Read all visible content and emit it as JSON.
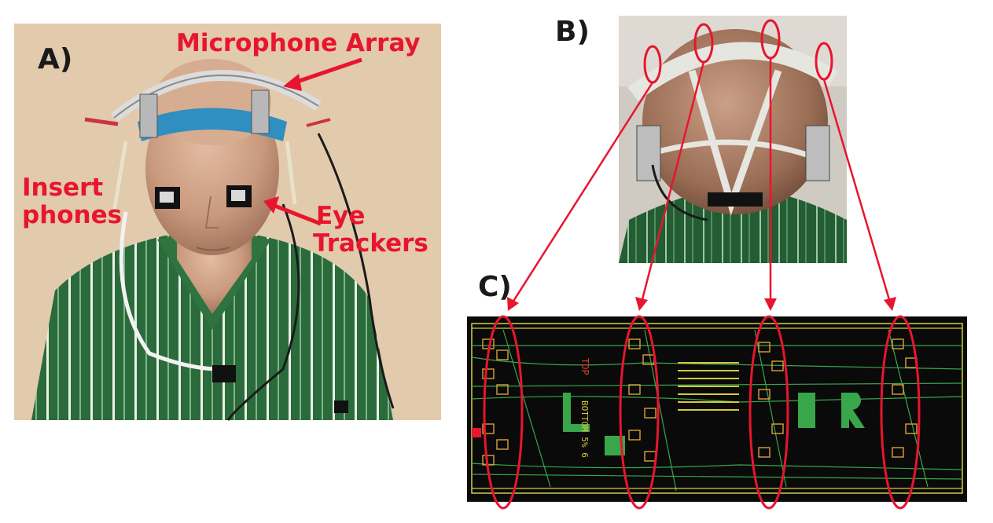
{
  "panels": {
    "a": {
      "label": "A)"
    },
    "b": {
      "label": "B)"
    },
    "c": {
      "label": "C)"
    }
  },
  "callouts": {
    "microphone_array": "Microphone Array",
    "insert_phones_line1": "Insert",
    "insert_phones_line2": "phones",
    "eye_trackers_line1": "Eye",
    "eye_trackers_line2": "Trackers"
  },
  "pcb_silkscreen": {
    "top": "TOP",
    "bottom": "BOTTOM 5% 6"
  },
  "colors": {
    "annotation_red": "#e8152e",
    "shirt_green": "#2c6b3c",
    "pcb_background": "#0a0a0a",
    "pcb_trace_green": "#3aa64a",
    "pcb_trace_yellow": "#d8c840",
    "mannequin_skin": "#c99a7e",
    "wall_beige": "#e6d0b4"
  }
}
